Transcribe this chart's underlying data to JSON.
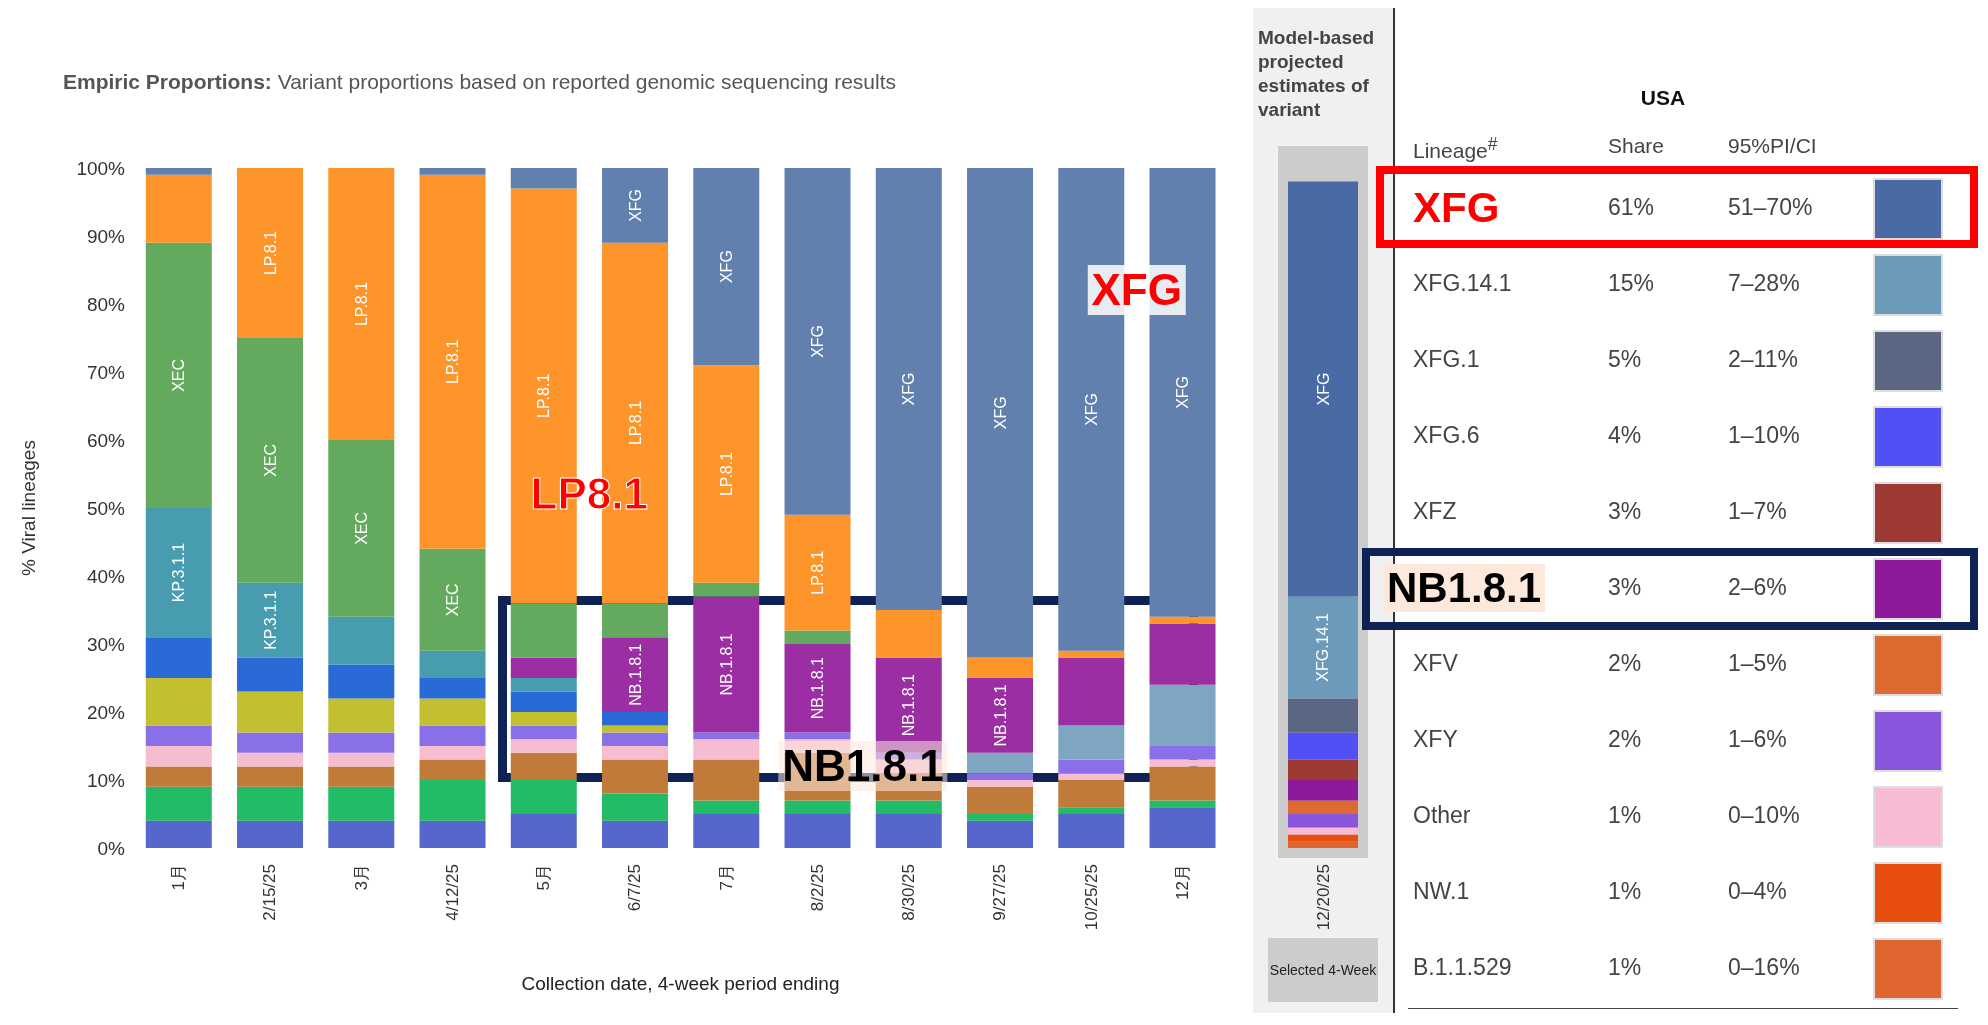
{
  "chart_data": [
    {
      "type": "bar",
      "stacked": true,
      "title": "Empiric Proportions:",
      "subtitle": "Variant proportions based on reported genomic sequencing results",
      "ylabel": "% Viral lineages",
      "xlabel": "Collection date, 4-week period ending",
      "categories": [
        "1月",
        "2/15/25",
        "3月",
        "4/12/25",
        "5月",
        "6/7/25",
        "7月",
        "8/2/25",
        "8/30/25",
        "9/27/25",
        "10/25/25",
        "12月"
      ],
      "ylim": [
        0,
        100
      ],
      "yticks": [
        {
          "value": 0,
          "label": "0%"
        },
        {
          "value": 10,
          "label": "10%"
        },
        {
          "value": 20,
          "label": "20%"
        },
        {
          "value": 30,
          "label": "30%"
        },
        {
          "value": 40,
          "label": "40%"
        },
        {
          "value": 50,
          "label": "50%"
        },
        {
          "value": 60,
          "label": "60%"
        },
        {
          "value": 70,
          "label": "70%"
        },
        {
          "value": 80,
          "label": "80%"
        },
        {
          "value": 90,
          "label": "90%"
        },
        {
          "value": 100,
          "label": "100%"
        }
      ],
      "series": [
        {
          "color": "#5566cc",
          "values": [
            4,
            4,
            4,
            4,
            5,
            4,
            5,
            5,
            5,
            4,
            5,
            6
          ]
        },
        {
          "color": "#22bb66",
          "values": [
            5,
            5,
            5,
            6,
            5,
            4,
            2,
            2,
            2,
            1,
            1,
            1
          ]
        },
        {
          "color": "#c07a3a",
          "values": [
            3,
            3,
            3,
            3,
            4,
            5,
            6,
            7,
            4,
            4,
            4,
            5
          ]
        },
        {
          "color": "#f6bcd0",
          "values": [
            3,
            2,
            2,
            2,
            2,
            2,
            3,
            2,
            2,
            1,
            1,
            1
          ]
        },
        {
          "color": "#8a70e8",
          "values": [
            3,
            3,
            3,
            3,
            2,
            2,
            1,
            1,
            1,
            1,
            2,
            2
          ]
        },
        {
          "color": "#c2c030",
          "values": [
            7,
            6,
            5,
            4,
            2,
            1,
            0,
            0,
            0,
            0,
            0,
            0
          ]
        },
        {
          "color": "#2a6ad6",
          "values": [
            6,
            5,
            5,
            3,
            3,
            2,
            0,
            0,
            0,
            0,
            0,
            0
          ]
        },
        {
          "name": "KP.3.1.1",
          "color": "#479daf",
          "values": [
            19,
            11,
            7,
            4,
            2,
            0,
            0,
            0,
            0,
            0,
            0,
            0
          ]
        },
        {
          "color": "#7ea5c2",
          "values": [
            0,
            0,
            0,
            0,
            0,
            0,
            0,
            0,
            0,
            3,
            5,
            9
          ]
        },
        {
          "name": "NB.1.8.1",
          "color": "#9a2ea2",
          "values": [
            0,
            0,
            0,
            0,
            3,
            11,
            20,
            13,
            14,
            11,
            10,
            9
          ]
        },
        {
          "name": "XEC",
          "color": "#63aa5f",
          "values": [
            39,
            36,
            26,
            15,
            8,
            5,
            2,
            2,
            0,
            0,
            0,
            0
          ]
        },
        {
          "name": "LP.8.1",
          "color": "#fd952b",
          "values": [
            10,
            25,
            40,
            55,
            61,
            53,
            32,
            17,
            7,
            3,
            1,
            1
          ]
        },
        {
          "name": "XFG",
          "color": "#6280ae",
          "values": [
            1,
            0,
            0,
            1,
            3,
            11,
            29,
            51,
            65,
            72,
            71,
            66
          ]
        }
      ],
      "annotations": [
        "LP8.1",
        "XFG",
        "NB1.8.1"
      ]
    },
    {
      "type": "bar",
      "stacked": true,
      "title": "Model-based projected estimates of variant",
      "xlabel": "Selected 4-Week",
      "categories": [
        "12/20/25"
      ],
      "ylim": [
        0,
        100
      ],
      "tick_labels": "x",
      "legend": "right",
      "legend_title": "USA",
      "series": [
        {
          "name": "B.1.1.529",
          "color": "#df6530",
          "values": [
            1
          ]
        },
        {
          "name": "NW.1",
          "color": "#e84e0f",
          "values": [
            1
          ]
        },
        {
          "name": "Other",
          "color": "#f7bcd3",
          "values": [
            1
          ]
        },
        {
          "name": "XFY",
          "color": "#8a55dd",
          "values": [
            2
          ]
        },
        {
          "name": "XFV",
          "color": "#dd6a30",
          "values": [
            2
          ]
        },
        {
          "name": "NB1.8.1",
          "color": "#8c1a9a",
          "values": [
            3
          ]
        },
        {
          "name": "XFZ",
          "color": "#9c3a33",
          "values": [
            3
          ]
        },
        {
          "name": "XFG.6",
          "color": "#5050f5",
          "values": [
            4
          ]
        },
        {
          "name": "XFG.1",
          "color": "#5a6682",
          "values": [
            5
          ]
        },
        {
          "name": "XFG.14.1",
          "color": "#6b9abb",
          "values": [
            15
          ]
        },
        {
          "name": "XFG",
          "color": "#4a6aa5",
          "values": [
            61
          ]
        }
      ],
      "annotations": [
        "Lineage$^{#}$",
        "Share",
        "95%PI/CI",
        "61%",
        "15%",
        "5%",
        "4%",
        "3%",
        "3%",
        "2%",
        "2%",
        "1%",
        "1%",
        "1%",
        "51–70%",
        "7–28%",
        "2–11%",
        "1–10%",
        "1–7%",
        "2–6%",
        "1–5%",
        "1–6%",
        "0–10%",
        "0–4%",
        "0–16%"
      ]
    }
  ]
}
